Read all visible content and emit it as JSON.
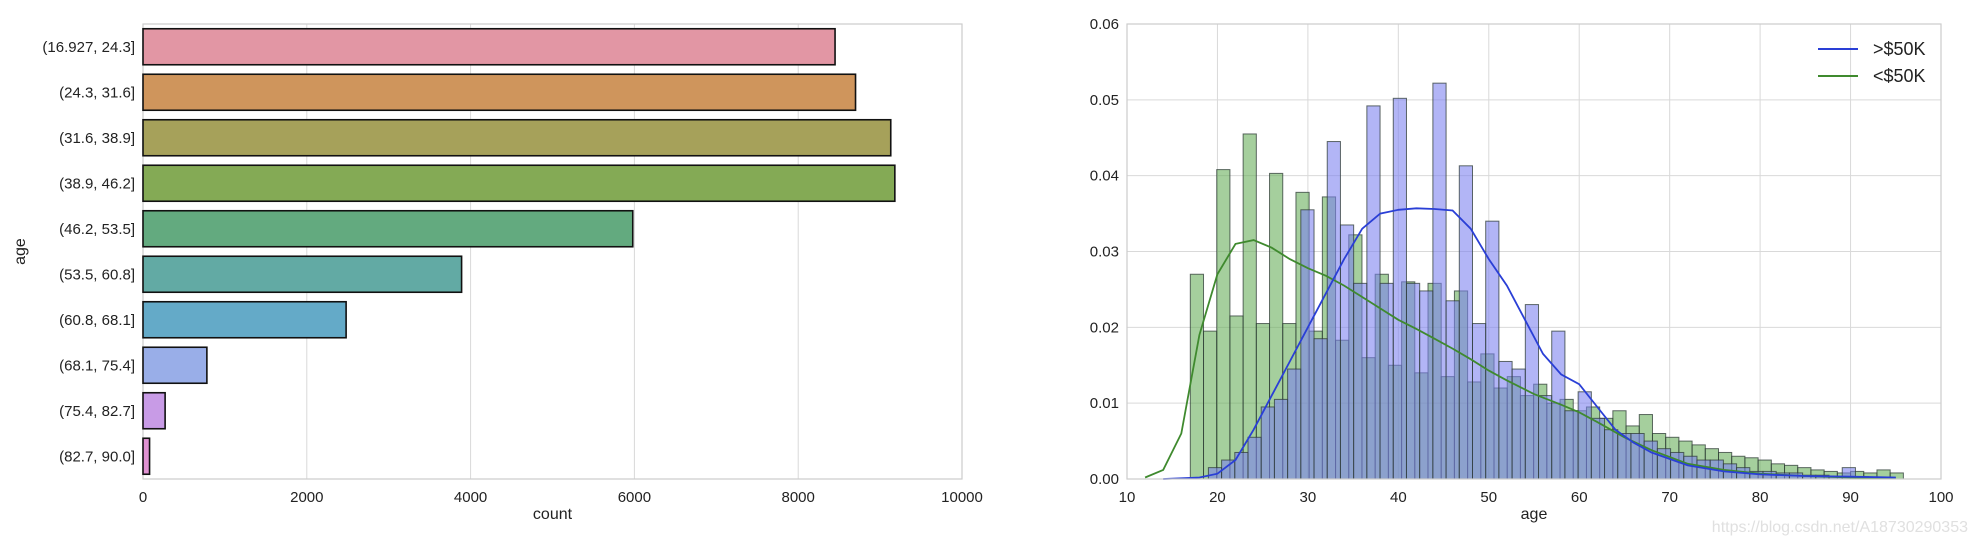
{
  "watermark": "https://blog.csdn.net/A18730290353",
  "chart_data": [
    {
      "type": "bar",
      "orientation": "horizontal",
      "ylabel": "age",
      "xlabel": "count",
      "xlim": [
        0,
        10000
      ],
      "xticks": [
        0,
        2000,
        4000,
        6000,
        8000,
        10000
      ],
      "grid": true,
      "categories": [
        "(16.927, 24.3]",
        "(24.3, 31.6]",
        "(31.6, 38.9]",
        "(38.9, 46.2]",
        "(46.2, 53.5]",
        "(53.5, 60.8]",
        "(60.8, 68.1]",
        "(68.1, 75.4]",
        "(75.4, 82.7]",
        "(82.7, 90.0]"
      ],
      "values": [
        8450,
        8700,
        9130,
        9180,
        5980,
        3890,
        2480,
        780,
        270,
        80
      ],
      "colors": [
        "#e296a4",
        "#cf955c",
        "#a6a15a",
        "#84aa55",
        "#63aa7f",
        "#62aaa4",
        "#64aac8",
        "#99aee8",
        "#c89be6",
        "#e092d2"
      ]
    },
    {
      "type": "histogram",
      "xlabel": "age",
      "xlim": [
        10,
        100
      ],
      "ylim": [
        0,
        0.06
      ],
      "xticks": [
        10,
        20,
        30,
        40,
        50,
        60,
        70,
        80,
        90,
        100
      ],
      "yticks": [
        0.0,
        0.01,
        0.02,
        0.03,
        0.04,
        0.05,
        0.06
      ],
      "ytick_labels": [
        "0.00",
        "0.01",
        "0.02",
        "0.03",
        "0.04",
        "0.05",
        "0.06"
      ],
      "grid": true,
      "legend_position": "top-right",
      "bin_width": 1.46,
      "series": [
        {
          "name": "<$50K",
          "color": "#3f8a2e",
          "fill": "#64ac56",
          "bins_start": 17.0,
          "values": [
            0.027,
            0.0195,
            0.0408,
            0.0215,
            0.0455,
            0.0205,
            0.0403,
            0.0205,
            0.0378,
            0.0195,
            0.0372,
            0.0183,
            0.0322,
            0.016,
            0.027,
            0.015,
            0.026,
            0.014,
            0.0258,
            0.0135,
            0.0248,
            0.0128,
            0.0165,
            0.012,
            0.0135,
            0.011,
            0.0125,
            0.01,
            0.0105,
            0.009,
            0.0095,
            0.008,
            0.009,
            0.007,
            0.0085,
            0.006,
            0.0055,
            0.005,
            0.0045,
            0.004,
            0.0035,
            0.003,
            0.0028,
            0.0025,
            0.002,
            0.0018,
            0.0015,
            0.0012,
            0.001,
            0.0008,
            0.001,
            0.0008,
            0.0012,
            0.0008
          ],
          "kde_x": [
            12,
            14,
            16,
            18,
            20,
            22,
            24,
            26,
            28,
            30,
            32,
            34,
            36,
            38,
            40,
            42,
            44,
            46,
            48,
            50,
            52,
            55,
            58,
            60,
            62,
            65,
            68,
            72,
            76,
            80,
            85,
            90,
            95
          ],
          "kde_y": [
            0.0002,
            0.0012,
            0.006,
            0.019,
            0.027,
            0.031,
            0.0315,
            0.0305,
            0.029,
            0.0278,
            0.0268,
            0.0255,
            0.024,
            0.0225,
            0.021,
            0.0198,
            0.0185,
            0.0172,
            0.0158,
            0.0143,
            0.013,
            0.0112,
            0.0098,
            0.0088,
            0.0075,
            0.0055,
            0.0038,
            0.002,
            0.0012,
            0.0007,
            0.0004,
            0.0002,
            0.0001
          ]
        },
        {
          "name": ">$50K",
          "color": "#2a3fd6",
          "fill": "#7b7ff0",
          "bins_start": 19.0,
          "values": [
            0.0015,
            0.0025,
            0.0035,
            0.0055,
            0.0095,
            0.0105,
            0.0145,
            0.0355,
            0.0185,
            0.0445,
            0.0335,
            0.0258,
            0.0492,
            0.0258,
            0.0502,
            0.0258,
            0.0248,
            0.0522,
            0.0235,
            0.0413,
            0.0205,
            0.034,
            0.0155,
            0.0145,
            0.023,
            0.011,
            0.0195,
            0.009,
            0.0115,
            0.008,
            0.0065,
            0.006,
            0.006,
            0.005,
            0.004,
            0.0035,
            0.003,
            0.0025,
            0.0025,
            0.002,
            0.0015,
            0.001,
            0.001,
            0.0008,
            0.0008,
            0.0005,
            0.0005,
            0.0003,
            0.0015,
            0.0003
          ],
          "kde_x": [
            14,
            18,
            20,
            22,
            24,
            26,
            28,
            30,
            32,
            34,
            36,
            38,
            40,
            42,
            44,
            46,
            48,
            50,
            52,
            54,
            56,
            58,
            60,
            62,
            64,
            66,
            68,
            72,
            76,
            80,
            85,
            90,
            95
          ],
          "kde_y": [
            0.0,
            0.0002,
            0.0007,
            0.0025,
            0.0065,
            0.011,
            0.0155,
            0.02,
            0.0245,
            0.029,
            0.033,
            0.035,
            0.0355,
            0.0357,
            0.0356,
            0.0354,
            0.033,
            0.029,
            0.0255,
            0.021,
            0.0165,
            0.0138,
            0.0125,
            0.0095,
            0.0065,
            0.0048,
            0.0035,
            0.0018,
            0.001,
            0.0006,
            0.0004,
            0.0003,
            0.0002
          ]
        }
      ]
    }
  ]
}
